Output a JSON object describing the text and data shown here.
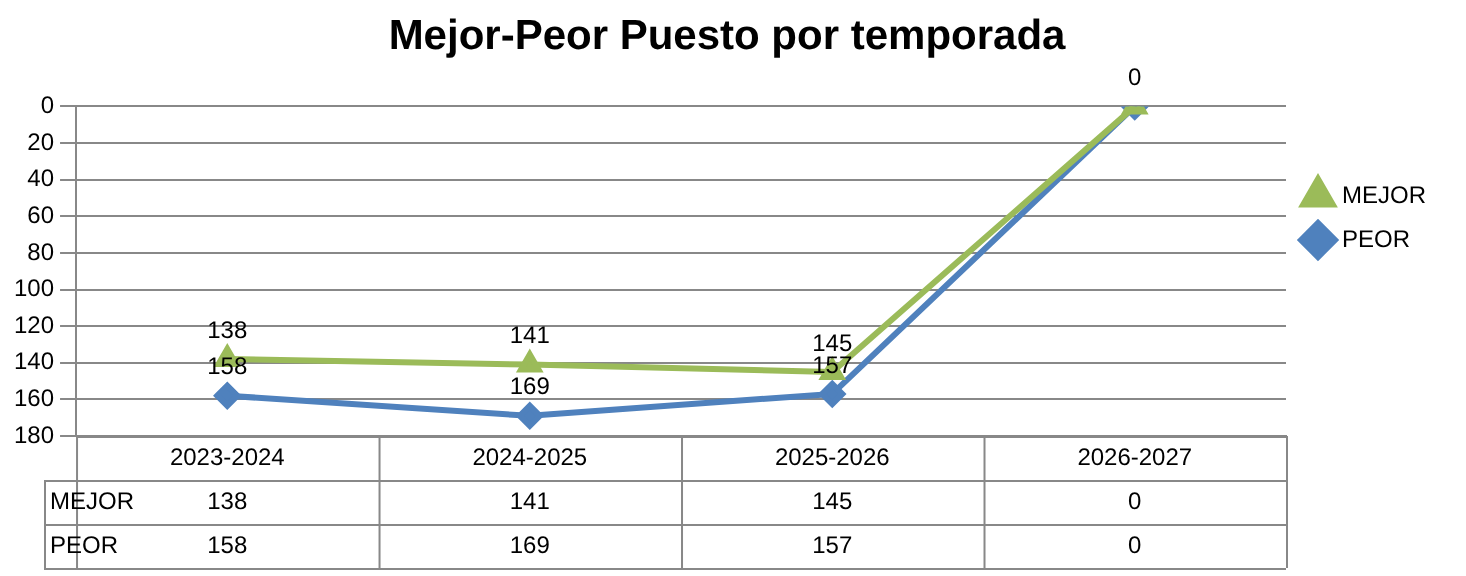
{
  "chart_data": {
    "type": "line",
    "title": "Mejor-Peor Puesto por temporada",
    "categories": [
      "2023-2024",
      "2024-2025",
      "2025-2026",
      "2026-2027"
    ],
    "series": [
      {
        "name": "MEJOR",
        "color": "#9bbb59",
        "marker": "triangle",
        "values": [
          138,
          141,
          145,
          0
        ]
      },
      {
        "name": "PEOR",
        "color": "#4f81bd",
        "marker": "diamond",
        "values": [
          158,
          169,
          157,
          0
        ]
      }
    ],
    "ylim": [
      180,
      0
    ],
    "yticks": [
      0,
      20,
      40,
      60,
      80,
      100,
      120,
      140,
      160,
      180
    ],
    "grid": "y",
    "legend": "right",
    "data_labels": true,
    "annotations": [
      {
        "text": "138",
        "x": "2023-2024",
        "y": 138
      },
      {
        "text": "141",
        "x": "2024-2025",
        "y": 141
      },
      {
        "text": "145",
        "x": "2025-2026",
        "y": 145
      },
      {
        "text": "0",
        "x": "2026-2027",
        "y": 0
      },
      {
        "text": "158",
        "x": "2023-2024",
        "y": 158
      },
      {
        "text": "169",
        "x": "2024-2025",
        "y": 169
      },
      {
        "text": "157",
        "x": "2025-2026",
        "y": 157
      }
    ]
  }
}
